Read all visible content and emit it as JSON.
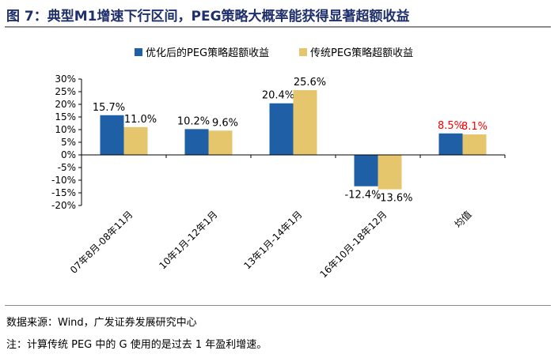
{
  "figure": {
    "title": "图 7：典型M1增速下行区间，PEG策略大概率能获得显著超额收益",
    "source": "数据来源：Wind，广发证券发展研究中心",
    "note": "注：计算传统 PEG 中的 G 使用的是过去 1 年盈利增速。"
  },
  "chart_data": {
    "type": "bar",
    "title": "",
    "categories": [
      "07年8月-08年11月",
      "10年1月-12年1月",
      "13年1月-14年1月",
      "16年10月-18年12月",
      "均值"
    ],
    "series": [
      {
        "name": "优化后的PEG策略超额收益",
        "color": "#1f5fa6",
        "values": [
          15.7,
          10.2,
          20.4,
          -12.4,
          8.5
        ],
        "labels": [
          "15.7%",
          "10.2%",
          "20.4%",
          "-12.4%",
          "8.5%"
        ]
      },
      {
        "name": "传统PEG策略超额收益",
        "color": "#e5c66d",
        "values": [
          11.0,
          9.6,
          25.6,
          -13.6,
          8.1
        ],
        "labels": [
          "11.0%",
          "9.6%",
          "25.6%",
          "-13.6%",
          "8.1%"
        ]
      }
    ],
    "highlight_label_color": "#ff0000",
    "highlight_category_index": 4,
    "ylim": [
      -20,
      30
    ],
    "yticks": [
      -20,
      -15,
      -10,
      -5,
      0,
      5,
      10,
      15,
      20,
      25,
      30
    ],
    "ytick_labels": [
      "-20%",
      "-15%",
      "-10%",
      "-5%",
      "0%",
      "5%",
      "10%",
      "15%",
      "20%",
      "25%",
      "30%"
    ],
    "xlabel": "",
    "ylabel": "",
    "grid": false,
    "legend_position": "top"
  }
}
